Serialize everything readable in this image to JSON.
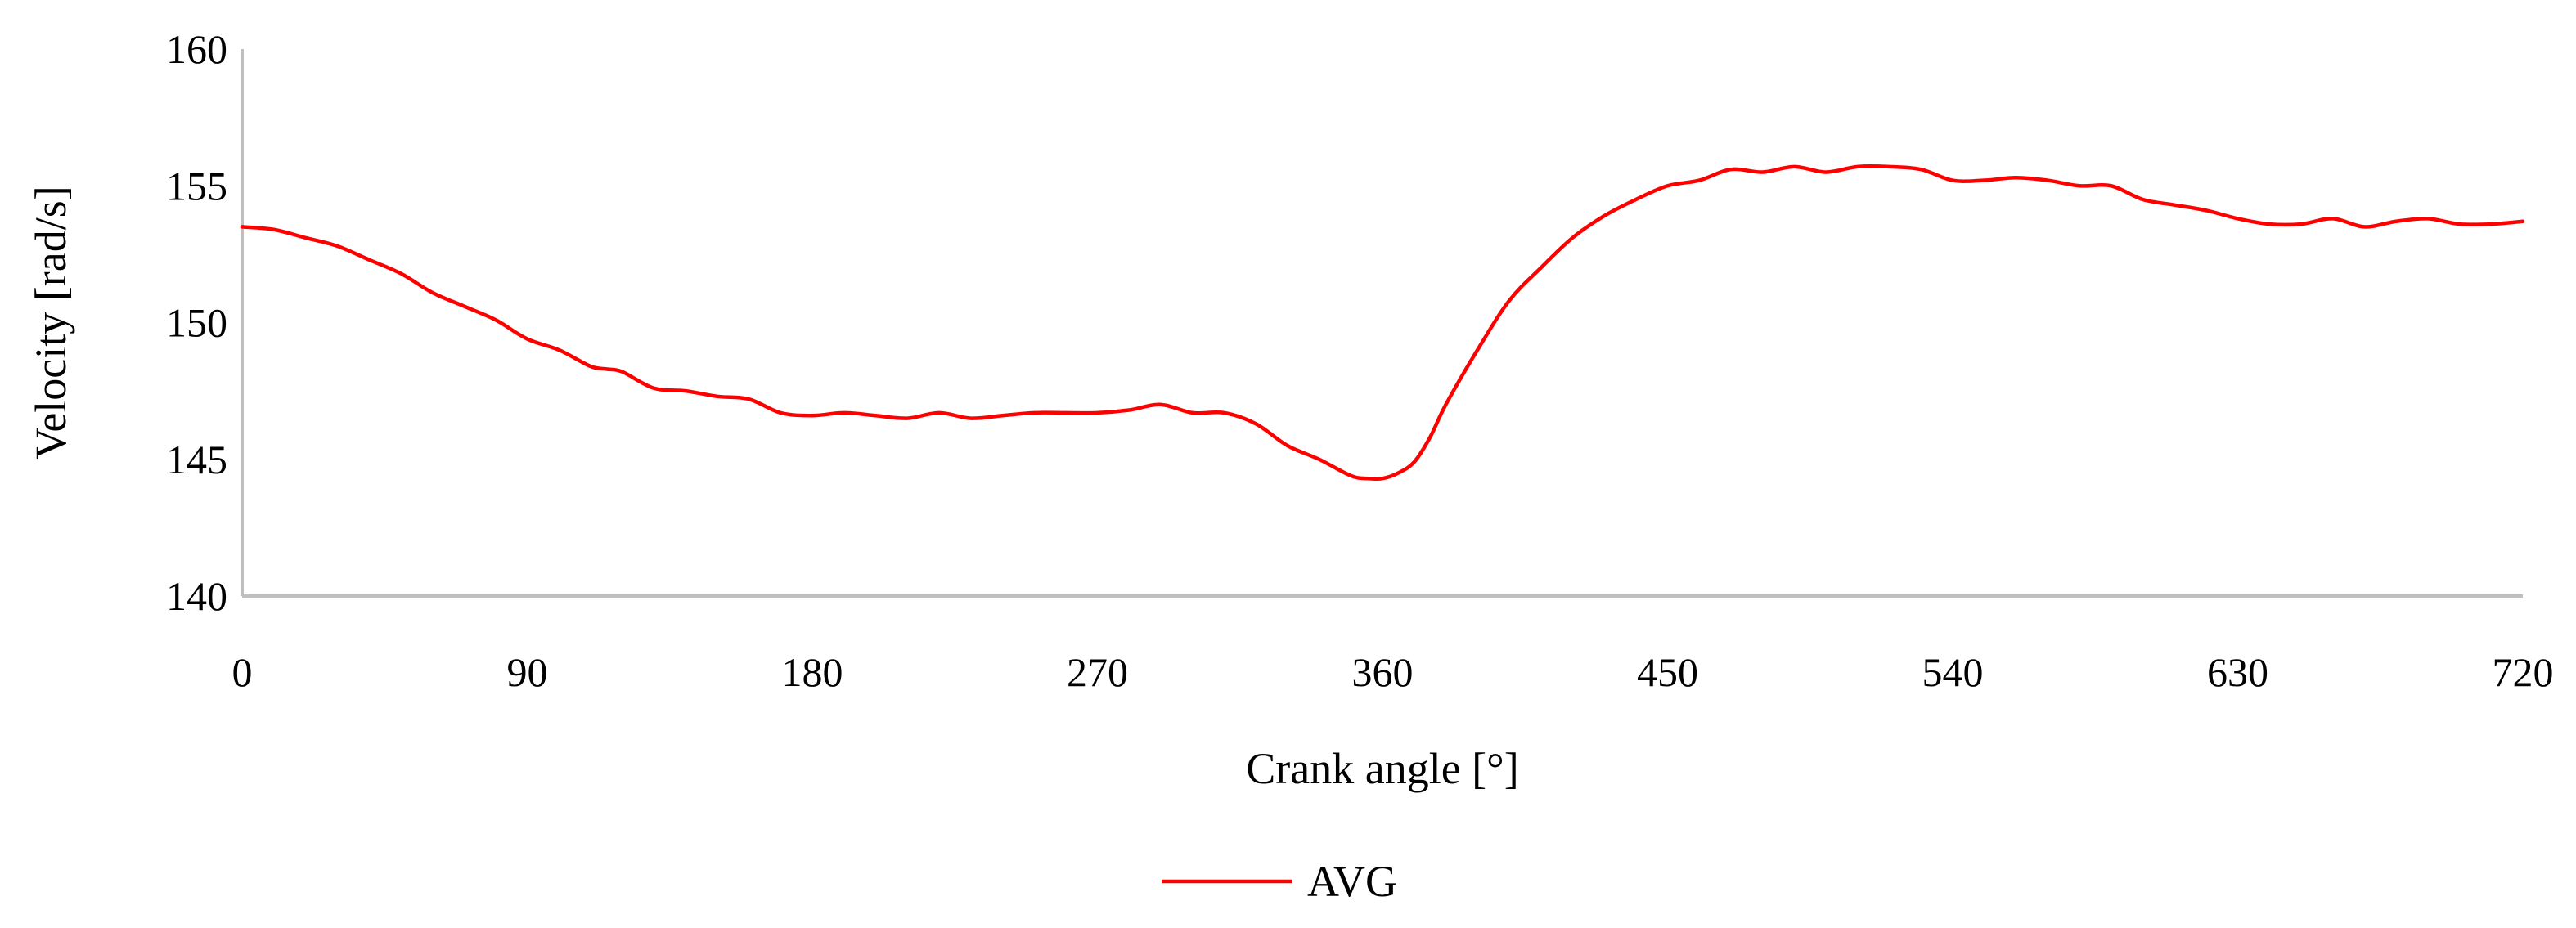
{
  "chart_data": {
    "type": "line",
    "title": "",
    "xlabel": "Crank angle [°]",
    "ylabel": "Velocity [rad/s]",
    "xlim": [
      0,
      720
    ],
    "ylim": [
      140,
      160
    ],
    "xticks": [
      "0",
      "90",
      "180",
      "270",
      "360",
      "450",
      "540",
      "630",
      "720"
    ],
    "yticks": [
      "140",
      "145",
      "150",
      "155",
      "160"
    ],
    "grid": false,
    "legend_position": "bottom",
    "series": [
      {
        "name": "AVG",
        "color": "#ff0000",
        "x": [
          0,
          10,
          20,
          30,
          40,
          50,
          60,
          70,
          80,
          90,
          100,
          110,
          115,
          120,
          130,
          140,
          150,
          160,
          170,
          180,
          190,
          200,
          210,
          220,
          230,
          240,
          250,
          260,
          270,
          280,
          290,
          300,
          310,
          320,
          330,
          340,
          350,
          355,
          360,
          365,
          370,
          375,
          380,
          390,
          400,
          410,
          420,
          430,
          440,
          450,
          460,
          470,
          480,
          490,
          500,
          510,
          520,
          530,
          540,
          550,
          560,
          570,
          580,
          590,
          600,
          610,
          620,
          630,
          640,
          650,
          660,
          670,
          680,
          690,
          700,
          710,
          720
        ],
        "y": [
          153.5,
          153.4,
          153.1,
          152.8,
          152.3,
          151.8,
          151.1,
          150.6,
          150.1,
          149.4,
          149.0,
          148.4,
          148.3,
          148.2,
          147.6,
          147.5,
          147.3,
          147.2,
          146.7,
          146.6,
          146.7,
          146.6,
          146.5,
          146.7,
          146.5,
          146.6,
          146.7,
          146.7,
          146.7,
          146.8,
          147.0,
          146.7,
          146.7,
          146.3,
          145.5,
          145.0,
          144.4,
          144.3,
          144.3,
          144.5,
          144.9,
          145.8,
          147.0,
          149.0,
          150.8,
          152.0,
          153.1,
          153.9,
          154.5,
          155.0,
          155.2,
          155.6,
          155.5,
          155.7,
          155.5,
          155.7,
          155.7,
          155.6,
          155.2,
          155.2,
          155.3,
          155.2,
          155.0,
          155.0,
          154.5,
          154.3,
          154.1,
          153.8,
          153.6,
          153.6,
          153.8,
          153.5,
          153.7,
          153.8,
          153.6,
          153.6,
          153.7
        ]
      }
    ]
  }
}
